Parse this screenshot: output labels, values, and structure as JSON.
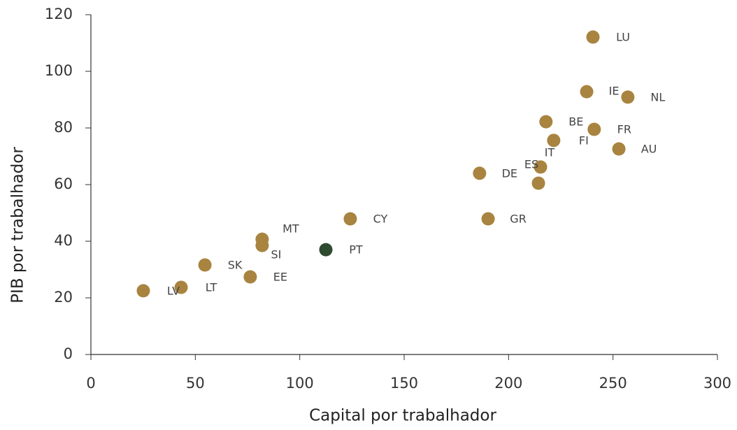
{
  "chart_data": {
    "type": "scatter",
    "xlabel": "Capital por trabalhador",
    "ylabel": "PIB por trabalhador",
    "xlim": [
      0,
      300
    ],
    "xticks": [
      0,
      50,
      100,
      150,
      200,
      250,
      300
    ],
    "ylim": [
      0,
      120
    ],
    "yticks": [
      0,
      20,
      40,
      60,
      80,
      100,
      120
    ],
    "series": [
      {
        "labels": [
          "LU",
          "IE",
          "NL",
          "BE",
          "FR",
          "FI",
          "AU",
          "IT",
          "ES",
          "DE",
          "GR",
          "CY",
          "MT",
          "SI",
          "PT",
          "SK",
          "EE",
          "LT",
          "LV"
        ],
        "x": [
          240.4,
          237.4,
          257.1,
          217.9,
          241.0,
          221.6,
          252.8,
          215.3,
          214.3,
          186.1,
          190.2,
          124.2,
          82.0,
          82.0,
          112.5,
          54.6,
          76.3,
          43.2,
          25.1
        ],
        "values": [
          112.1,
          92.8,
          90.9,
          82.2,
          79.5,
          75.6,
          72.6,
          66.2,
          60.5,
          64.0,
          47.9,
          47.9,
          40.7,
          38.5,
          37.0,
          31.6,
          27.4,
          23.7,
          22.5
        ],
        "colors": [
          "#a88440",
          "#a88440",
          "#a88440",
          "#a88440",
          "#a88440",
          "#a88440",
          "#a88440",
          "#a88440",
          "#a88440",
          "#a88440",
          "#a88440",
          "#a88440",
          "#a88440",
          "#a88440",
          "#2e4a2f",
          "#a88440",
          "#a88440",
          "#a88440",
          "#a88440"
        ]
      }
    ]
  }
}
